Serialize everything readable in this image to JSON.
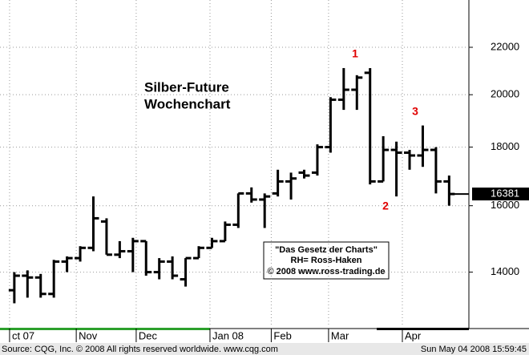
{
  "chart_data": {
    "type": "ohlc",
    "title": "Silber-Future",
    "subtitle": "Wochenchart",
    "open": [
      13500,
      13900,
      13850,
      13400,
      14300,
      14400,
      14700,
      15500,
      14500,
      14600,
      14900,
      14000,
      14300,
      13800,
      14400,
      14700,
      14900,
      15400,
      16400,
      16200,
      16400,
      16800,
      17100,
      17100,
      18000,
      19800,
      20200,
      20900,
      16800,
      17900,
      17800,
      17700,
      17900,
      16800
    ],
    "high": [
      14000,
      14050,
      13950,
      14350,
      14450,
      14750,
      16300,
      15600,
      14900,
      15000,
      14900,
      14400,
      14450,
      14400,
      14750,
      15000,
      15500,
      16400,
      16600,
      16400,
      17200,
      17100,
      17200,
      18100,
      19900,
      21100,
      20800,
      21100,
      18400,
      18200,
      17900,
      18800,
      18000,
      17000
    ],
    "low": [
      13150,
      13300,
      13300,
      13300,
      14000,
      14300,
      14600,
      14500,
      14400,
      14000,
      13900,
      13800,
      13800,
      13600,
      14400,
      14700,
      14900,
      15300,
      16100,
      15300,
      16300,
      16200,
      16900,
      17000,
      17800,
      19400,
      19400,
      16700,
      16800,
      16300,
      17200,
      17300,
      16400,
      16000
    ],
    "close": [
      13900,
      13850,
      13400,
      14300,
      14400,
      14700,
      15600,
      14500,
      14600,
      14900,
      14000,
      14300,
      13900,
      14400,
      14700,
      14900,
      15400,
      16400,
      16200,
      16300,
      16800,
      16900,
      17000,
      18000,
      19800,
      20200,
      20700,
      16800,
      17900,
      17800,
      17700,
      17900,
      16800,
      16381
    ],
    "color": "#000000",
    "log_scale": true,
    "grid": true,
    "ylim": [
      12600,
      24000
    ],
    "yticks": [
      14000,
      16000,
      18000,
      20000,
      22000
    ],
    "xlim": [
      -0.6,
      34.5
    ],
    "xticks": [
      {
        "value": -0.36,
        "label": "ct 07"
      },
      {
        "value": 4.7,
        "label": "Nov"
      },
      {
        "value": 9.25,
        "label": "Dec"
      },
      {
        "value": 14.85,
        "label": "Jan 08"
      },
      {
        "value": 19.5,
        "label": "Feb"
      },
      {
        "value": 23.85,
        "label": "Mar"
      },
      {
        "value": 29.45,
        "label": "Apr"
      }
    ],
    "last_price": 16381,
    "annotations": [
      "1",
      "2",
      "3"
    ],
    "box_lines": [
      "\"Das Gesetz der Charts\"",
      "RH= Ross-Haken",
      "© 2008 www.ross-trading.de"
    ],
    "source": "Source: CQG, Inc. © 2008 All rights reserved worldwide. www.cqg.com",
    "timestamp": "Sun May 04 2008 15:59:45"
  }
}
